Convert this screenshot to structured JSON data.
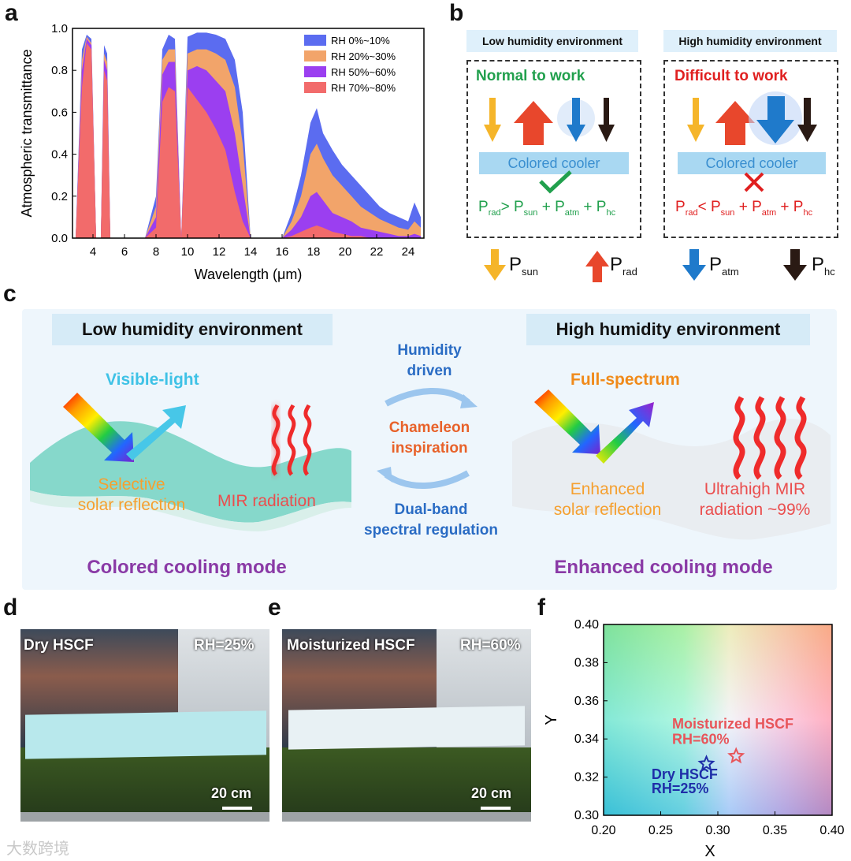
{
  "panel_labels": {
    "a": "a",
    "b": "b",
    "c": "c",
    "d": "d",
    "e": "e",
    "f": "f"
  },
  "chart_data": [
    {
      "type": "area",
      "xlabel": "Wavelength (μm)",
      "ylabel": "Atmospheric transmittance",
      "xlim": [
        2.7,
        25
      ],
      "ylim": [
        0,
        1.0
      ],
      "xticks": [
        "4",
        "6",
        "8",
        "10",
        "12",
        "14",
        "16",
        "18",
        "20",
        "22",
        "24"
      ],
      "yticks": [
        "0.0",
        "0.2",
        "0.4",
        "0.6",
        "0.8",
        "1.0"
      ],
      "legend_position": "top-right",
      "series": [
        {
          "name": "RH 0%~10%",
          "color": "#5b6cf0",
          "x": [
            2.9,
            3.3,
            3.6,
            3.9,
            4.2,
            4.5,
            4.7,
            4.9,
            5.1,
            7.3,
            8.0,
            8.4,
            8.8,
            9.2,
            9.6,
            10.0,
            10.6,
            11.2,
            11.8,
            12.4,
            13.0,
            13.5,
            14.0,
            16.0,
            16.6,
            17.2,
            17.8,
            18.2,
            18.6,
            19.2,
            19.8,
            20.4,
            21.0,
            21.6,
            22.2,
            22.8,
            23.4,
            24.0,
            24.4,
            24.8
          ],
          "values": [
            0.0,
            0.9,
            0.97,
            0.95,
            0.0,
            0.0,
            0.92,
            0.88,
            0.0,
            0.0,
            0.2,
            0.9,
            0.97,
            0.95,
            0.0,
            0.96,
            0.98,
            0.98,
            0.97,
            0.95,
            0.85,
            0.6,
            0.0,
            0.0,
            0.12,
            0.3,
            0.55,
            0.62,
            0.5,
            0.42,
            0.35,
            0.3,
            0.25,
            0.2,
            0.15,
            0.12,
            0.1,
            0.08,
            0.17,
            0.1
          ]
        },
        {
          "name": "RH 20%~30%",
          "color": "#f2a46a",
          "x": [
            2.9,
            3.3,
            3.6,
            3.9,
            4.2,
            4.5,
            4.7,
            4.9,
            5.1,
            7.3,
            8.0,
            8.4,
            8.8,
            9.2,
            9.6,
            10.0,
            10.6,
            11.2,
            11.8,
            12.4,
            13.0,
            13.5,
            14.0,
            16.0,
            16.6,
            17.2,
            17.8,
            18.2,
            18.6,
            19.2,
            19.8,
            20.4,
            21.0,
            21.6,
            22.2,
            22.8,
            23.4,
            24.0,
            24.4,
            24.8
          ],
          "values": [
            0.0,
            0.85,
            0.96,
            0.93,
            0.0,
            0.0,
            0.88,
            0.84,
            0.0,
            0.0,
            0.15,
            0.85,
            0.9,
            0.9,
            0.0,
            0.88,
            0.9,
            0.9,
            0.88,
            0.85,
            0.72,
            0.45,
            0.0,
            0.0,
            0.08,
            0.2,
            0.4,
            0.45,
            0.38,
            0.3,
            0.25,
            0.2,
            0.15,
            0.12,
            0.09,
            0.07,
            0.05,
            0.04,
            0.08,
            0.05
          ]
        },
        {
          "name": "RH 50%~60%",
          "color": "#9b3ff0",
          "x": [
            2.9,
            3.3,
            3.6,
            3.9,
            4.2,
            4.5,
            4.7,
            4.9,
            5.1,
            7.3,
            8.0,
            8.4,
            8.8,
            9.2,
            9.6,
            10.0,
            10.6,
            11.2,
            11.8,
            12.4,
            13.0,
            13.5,
            14.0,
            16.0,
            16.6,
            17.2,
            17.8,
            18.2,
            18.6,
            19.2,
            19.8,
            20.4,
            21.0,
            21.6,
            22.2,
            22.8,
            23.4,
            24.0,
            24.4,
            24.8
          ],
          "values": [
            0.0,
            0.8,
            0.95,
            0.92,
            0.0,
            0.0,
            0.85,
            0.8,
            0.0,
            0.0,
            0.1,
            0.78,
            0.84,
            0.84,
            0.0,
            0.8,
            0.82,
            0.8,
            0.75,
            0.7,
            0.5,
            0.25,
            0.0,
            0.0,
            0.04,
            0.1,
            0.2,
            0.22,
            0.18,
            0.12,
            0.1,
            0.08,
            0.05,
            0.04,
            0.03,
            0.02,
            0.01,
            0.01,
            0.02,
            0.01
          ]
        },
        {
          "name": "RH 70%~80%",
          "color": "#f26b6b",
          "x": [
            2.9,
            3.3,
            3.6,
            3.9,
            4.2,
            4.5,
            4.7,
            4.9,
            5.1,
            7.3,
            8.0,
            8.4,
            8.8,
            9.2,
            9.6,
            10.0,
            10.6,
            11.2,
            11.8,
            12.4,
            13.0,
            13.5,
            14.0,
            16.0,
            16.6,
            17.2,
            17.8,
            18.2,
            18.6,
            19.2,
            19.8,
            20.4,
            21.0,
            21.6,
            22.2,
            22.8,
            23.4,
            24.0,
            24.4,
            24.8
          ],
          "values": [
            0.0,
            0.72,
            0.93,
            0.9,
            0.0,
            0.0,
            0.8,
            0.75,
            0.0,
            0.0,
            0.05,
            0.65,
            0.72,
            0.7,
            0.0,
            0.72,
            0.66,
            0.6,
            0.52,
            0.42,
            0.22,
            0.08,
            0.0,
            0.0,
            0.01,
            0.03,
            0.05,
            0.06,
            0.05,
            0.03,
            0.02,
            0.01,
            0.01,
            0.0,
            0.0,
            0.0,
            0.0,
            0.0,
            0.0,
            0.0
          ]
        }
      ]
    },
    {
      "type": "scatter",
      "xlabel": "X",
      "ylabel": "Y",
      "xlim": [
        0.2,
        0.4
      ],
      "ylim": [
        0.3,
        0.4
      ],
      "xticks": [
        "0.20",
        "0.25",
        "0.30",
        "0.35",
        "0.40"
      ],
      "yticks": [
        "0.30",
        "0.32",
        "0.34",
        "0.36",
        "0.38",
        "0.40"
      ],
      "points": [
        {
          "label_line1": "Dry HSCF",
          "label_line2": "RH=25%",
          "x": 0.29,
          "y": 0.327,
          "color": "#1f2ea8",
          "marker": "star"
        },
        {
          "label_line1": "Moisturized HSCF",
          "label_line2": "RH=60%",
          "x": 0.316,
          "y": 0.331,
          "color": "#e8555a",
          "marker": "star"
        }
      ]
    }
  ],
  "panel_b": {
    "low_header": "Low humidity environment",
    "high_header": "High humidity environment",
    "low_status": "Normal to work",
    "high_status": "Difficult to work",
    "cooler_label": "Colored cooler",
    "colors": {
      "sun": "#f5b52a",
      "rad": "#e8472c",
      "atm": "#1f7acb",
      "hc": "#2a1a14",
      "green": "#21a04d",
      "red": "#e02020"
    },
    "legend": {
      "sun": "sun",
      "rad": "rad",
      "atm": "atm",
      "hc": "hc",
      "P": "P"
    },
    "eq_low_op": ">",
    "eq_high_op": "<",
    "plus": "+"
  },
  "panel_c": {
    "low_header": "Low humidity environment",
    "high_header": "High humidity environment",
    "visible_light": "Visible-light",
    "selective_1": "Selective",
    "selective_2": "solar reflection",
    "mir": "MIR radiation",
    "colored_mode": "Colored cooling mode",
    "humidity_1": "Humidity",
    "humidity_2": "driven",
    "chameleon_1": "Chameleon",
    "chameleon_2": "inspiration",
    "dualband_1": "Dual-band",
    "dualband_2": "spectral regulation",
    "full_spectrum": "Full-spectrum",
    "enhanced_1": "Enhanced",
    "enhanced_2": "solar reflection",
    "ultra_1": "Ultrahigh MIR",
    "ultra_2": "radiation ~99%",
    "enhanced_mode": "Enhanced cooling mode"
  },
  "panel_d": {
    "label": "Dry HSCF",
    "rh": "RH=25%",
    "scale": "20 cm"
  },
  "panel_e": {
    "label": "Moisturized HSCF",
    "rh": "RH=60%",
    "scale": "20 cm"
  },
  "watermark": "大数跨境"
}
